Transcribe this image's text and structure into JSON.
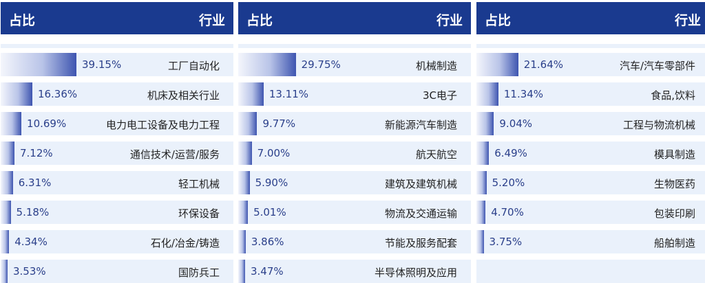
{
  "chart_data": [
    {
      "type": "bar",
      "header": {
        "left": "占比",
        "right": "行业"
      },
      "categories": [
        "工厂自动化",
        "机床及相关行业",
        "电力电工设备及电力工程",
        "通信技术/运营/服务",
        "轻工机械",
        "环保设备",
        "石化/冶金/铸造",
        "国防兵工"
      ],
      "values": [
        39.15,
        16.36,
        10.69,
        7.12,
        6.31,
        5.18,
        4.34,
        3.53
      ],
      "labels": [
        "39.15%",
        "16.36%",
        "10.69%",
        "7.12%",
        "6.31%",
        "5.18%",
        "4.34%",
        "3.53%"
      ]
    },
    {
      "type": "bar",
      "header": {
        "left": "占比",
        "right": "行业"
      },
      "categories": [
        "机械制造",
        "3C电子",
        "新能源汽车制造",
        "航天航空",
        "建筑及建筑机械",
        "物流及交通运输",
        "节能及服务配套",
        "半导体照明及应用"
      ],
      "values": [
        29.75,
        13.11,
        9.77,
        7.0,
        5.9,
        5.01,
        3.86,
        3.47
      ],
      "labels": [
        "29.75%",
        "13.11%",
        "9.77%",
        "7.00%",
        "5.90%",
        "5.01%",
        "3.86%",
        "3.47%"
      ]
    },
    {
      "type": "bar",
      "header": {
        "left": "占比",
        "right": "行业"
      },
      "categories": [
        "汽车/汽车零部件",
        "食品,饮料",
        "工程与物流机械",
        "模具制造",
        "生物医药",
        "包装印刷",
        "船舶制造"
      ],
      "values": [
        21.64,
        11.34,
        9.04,
        6.49,
        5.2,
        4.7,
        3.75
      ],
      "labels": [
        "21.64%",
        "11.34%",
        "9.04%",
        "6.49%",
        "5.20%",
        "4.70%",
        "3.75%"
      ]
    }
  ]
}
